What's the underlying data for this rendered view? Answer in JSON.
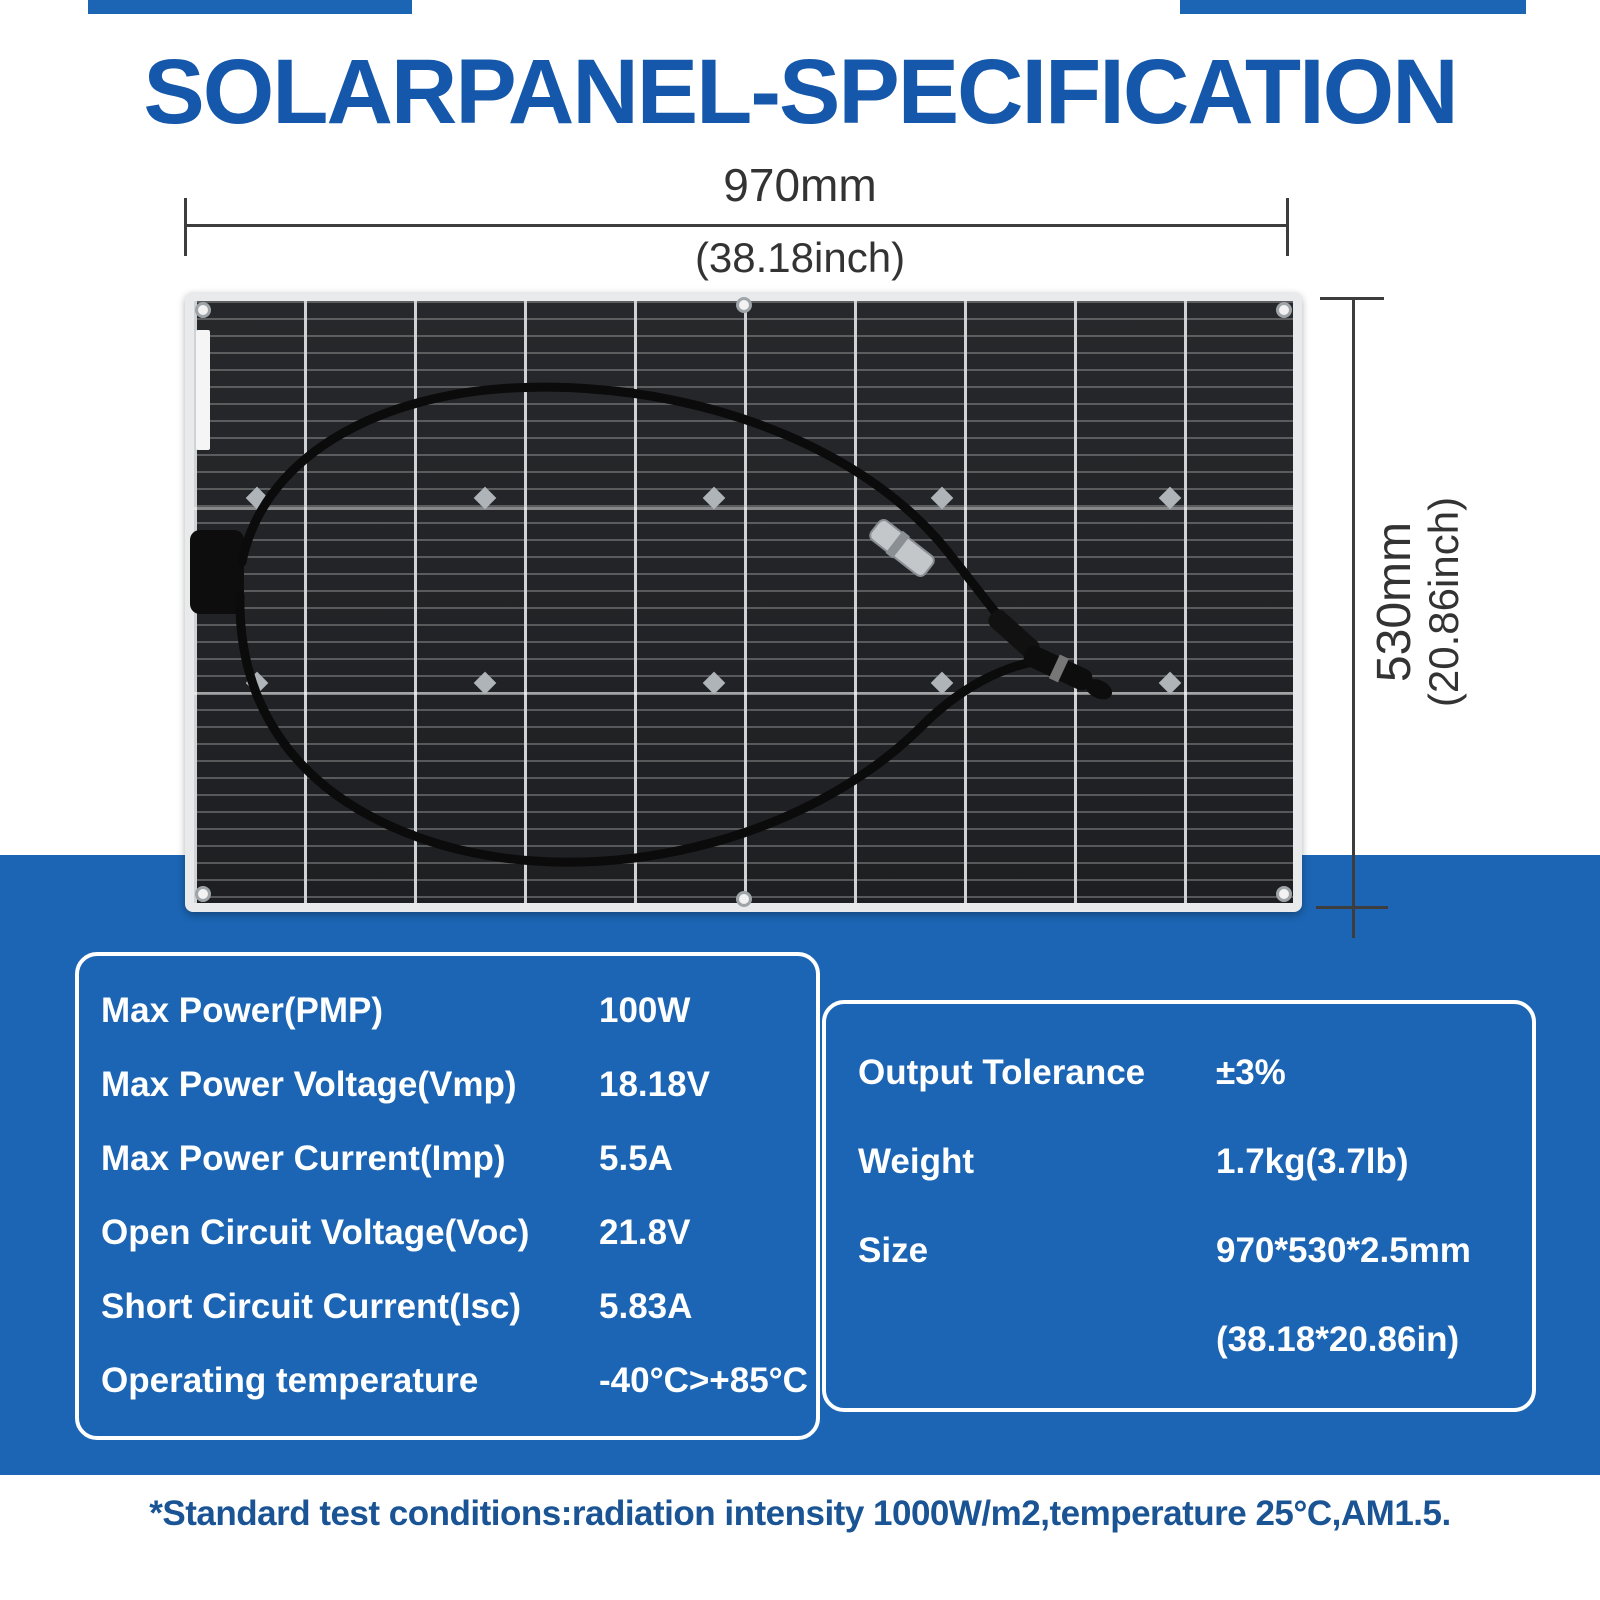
{
  "title": "SOLARPANEL-SPECIFICATION",
  "dimensions": {
    "width_mm": "970mm",
    "width_inch": "(38.18inch)",
    "height_mm": "530mm",
    "height_inch": "(20.86inch)"
  },
  "spec_left": {
    "rows": [
      {
        "label": "Max Power(PMP)",
        "value": "100W"
      },
      {
        "label": "Max Power Voltage(Vmp)",
        "value": "18.18V"
      },
      {
        "label": "Max Power Current(Imp)",
        "value": "5.5A"
      },
      {
        "label": "Open Circuit Voltage(Voc)",
        "value": "21.8V"
      },
      {
        "label": "Short Circuit Current(Isc)",
        "value": "5.83A"
      },
      {
        "label": "Operating temperature",
        "value": "-40°C>+85°C"
      }
    ]
  },
  "spec_right": {
    "rows": [
      {
        "label": "Output Tolerance",
        "value": "±3%"
      },
      {
        "label": "Weight",
        "value": "1.7kg(3.7lb)"
      },
      {
        "label": "Size",
        "value": "970*530*2.5mm"
      },
      {
        "label": "",
        "value": "(38.18*20.86in)"
      }
    ]
  },
  "footnote": "*Standard test conditions:radiation intensity 1000W/m2,temperature 25°C,AM1.5.",
  "colors": {
    "accent_blue": "#1b65b4",
    "title_blue": "#1558ab",
    "footnote_blue": "#1a5494",
    "dimension_text": "#333333",
    "panel_cell_dark": "#232528",
    "spec_text": "#ffffff"
  }
}
